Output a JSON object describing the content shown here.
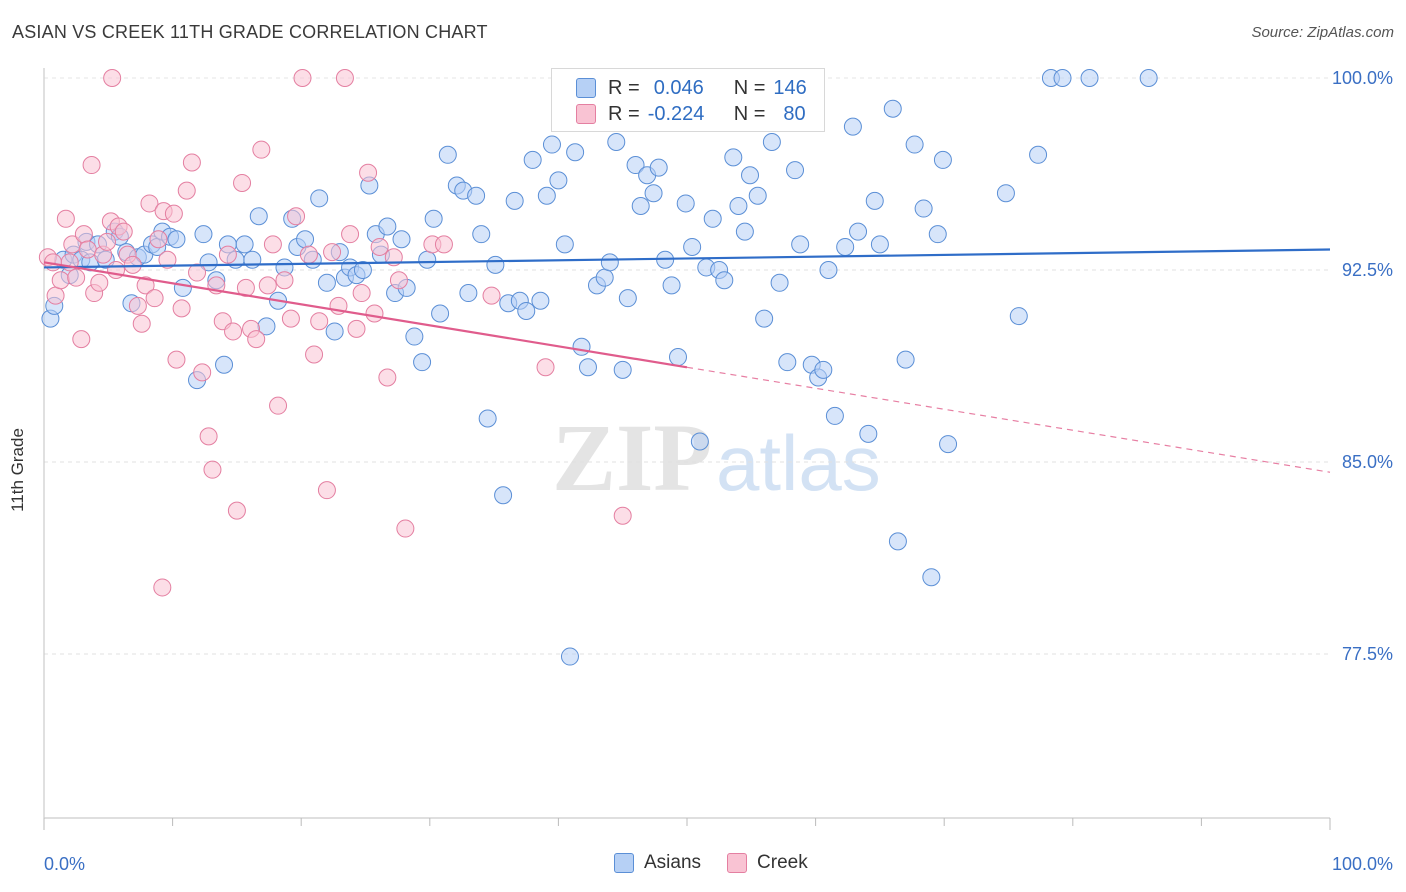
{
  "title": "ASIAN VS CREEK 11TH GRADE CORRELATION CHART",
  "source": "Source: ZipAtlas.com",
  "watermark": {
    "zip": "ZIP",
    "atlas": "atlas"
  },
  "legend": {
    "r_label": "R =",
    "n_label": "N =",
    "series": [
      {
        "name": "Asians",
        "r": "0.046",
        "n": "146",
        "color": "#5b8fd6"
      },
      {
        "name": "Creek",
        "r": "-0.224",
        "n": "80",
        "color": "#e47fa1"
      }
    ]
  },
  "chart_data": {
    "type": "scatter",
    "xlabel": "",
    "ylabel": "11th Grade",
    "xlim": [
      0,
      100
    ],
    "ylim": [
      70,
      100.5
    ],
    "x_ticks": [
      "0.0%",
      "100.0%"
    ],
    "y_ticks": [
      {
        "value": 100,
        "label": "100.0%"
      },
      {
        "value": 92.5,
        "label": "92.5%"
      },
      {
        "value": 85,
        "label": "85.0%"
      },
      {
        "value": 77.5,
        "label": "77.5%"
      }
    ],
    "grid": true,
    "series": [
      {
        "name": "Asians",
        "color": "#5b8fd6",
        "fill": "#b6d0f5",
        "trend": {
          "x": [
            0,
            100
          ],
          "y": [
            92.6,
            93.3
          ],
          "solid_until": 100
        },
        "points": [
          [
            0.5,
            90.6
          ],
          [
            0.8,
            91.1
          ],
          [
            1.5,
            92.9
          ],
          [
            2.0,
            92.3
          ],
          [
            2.3,
            93.1
          ],
          [
            2.9,
            92.9
          ],
          [
            3.3,
            93.6
          ],
          [
            3.6,
            92.8
          ],
          [
            4.2,
            93.5
          ],
          [
            4.8,
            92.9
          ],
          [
            5.5,
            94.0
          ],
          [
            5.9,
            93.8
          ],
          [
            6.4,
            93.2
          ],
          [
            6.8,
            91.2
          ],
          [
            7.3,
            93.0
          ],
          [
            7.8,
            93.1
          ],
          [
            8.4,
            93.5
          ],
          [
            8.8,
            93.4
          ],
          [
            9.2,
            94.0
          ],
          [
            9.8,
            93.8
          ],
          [
            10.3,
            93.7
          ],
          [
            10.8,
            91.8
          ],
          [
            11.9,
            88.2
          ],
          [
            12.4,
            93.9
          ],
          [
            12.8,
            92.8
          ],
          [
            13.4,
            92.1
          ],
          [
            14.0,
            88.8
          ],
          [
            14.3,
            93.5
          ],
          [
            14.9,
            92.9
          ],
          [
            15.6,
            93.5
          ],
          [
            16.2,
            92.9
          ],
          [
            16.7,
            94.6
          ],
          [
            17.3,
            90.3
          ],
          [
            18.2,
            91.3
          ],
          [
            18.7,
            92.6
          ],
          [
            19.3,
            94.5
          ],
          [
            19.7,
            93.4
          ],
          [
            20.3,
            93.7
          ],
          [
            20.9,
            92.9
          ],
          [
            21.4,
            95.3
          ],
          [
            22.0,
            92.0
          ],
          [
            22.6,
            90.1
          ],
          [
            23.0,
            93.2
          ],
          [
            23.4,
            92.2
          ],
          [
            23.8,
            92.6
          ],
          [
            24.3,
            92.3
          ],
          [
            24.8,
            92.5
          ],
          [
            25.3,
            95.8
          ],
          [
            25.8,
            93.9
          ],
          [
            26.2,
            93.1
          ],
          [
            26.7,
            94.2
          ],
          [
            27.3,
            91.6
          ],
          [
            27.8,
            93.7
          ],
          [
            28.2,
            91.8
          ],
          [
            28.8,
            89.9
          ],
          [
            29.4,
            88.9
          ],
          [
            29.8,
            92.9
          ],
          [
            30.3,
            94.5
          ],
          [
            30.8,
            90.8
          ],
          [
            31.4,
            97.0
          ],
          [
            32.1,
            95.8
          ],
          [
            32.6,
            95.6
          ],
          [
            33.0,
            91.6
          ],
          [
            33.6,
            95.4
          ],
          [
            34.0,
            93.9
          ],
          [
            34.5,
            86.7
          ],
          [
            35.1,
            92.7
          ],
          [
            35.7,
            83.7
          ],
          [
            36.1,
            91.2
          ],
          [
            36.6,
            95.2
          ],
          [
            37.0,
            91.3
          ],
          [
            37.5,
            90.9
          ],
          [
            38.0,
            96.8
          ],
          [
            38.6,
            91.3
          ],
          [
            39.1,
            95.4
          ],
          [
            39.5,
            97.4
          ],
          [
            40.0,
            96.0
          ],
          [
            40.5,
            93.5
          ],
          [
            40.9,
            77.4
          ],
          [
            41.3,
            97.1
          ],
          [
            41.8,
            89.5
          ],
          [
            42.3,
            88.7
          ],
          [
            43.0,
            91.9
          ],
          [
            43.6,
            92.2
          ],
          [
            44.0,
            92.8
          ],
          [
            44.5,
            97.5
          ],
          [
            45.0,
            88.6
          ],
          [
            45.4,
            91.4
          ],
          [
            46.0,
            96.6
          ],
          [
            46.4,
            95.0
          ],
          [
            46.9,
            96.2
          ],
          [
            47.4,
            95.5
          ],
          [
            47.8,
            96.5
          ],
          [
            48.3,
            92.9
          ],
          [
            48.8,
            91.9
          ],
          [
            49.3,
            89.1
          ],
          [
            49.9,
            95.1
          ],
          [
            50.4,
            93.4
          ],
          [
            51.0,
            85.8
          ],
          [
            51.5,
            92.6
          ],
          [
            52.0,
            94.5
          ],
          [
            52.5,
            92.5
          ],
          [
            52.9,
            92.1
          ],
          [
            53.6,
            96.9
          ],
          [
            54.0,
            95.0
          ],
          [
            54.5,
            94.0
          ],
          [
            54.9,
            96.2
          ],
          [
            55.5,
            95.4
          ],
          [
            56.0,
            90.6
          ],
          [
            56.6,
            97.5
          ],
          [
            57.2,
            92.0
          ],
          [
            57.8,
            88.9
          ],
          [
            58.4,
            96.4
          ],
          [
            58.8,
            93.5
          ],
          [
            59.7,
            88.8
          ],
          [
            60.2,
            88.3
          ],
          [
            60.6,
            88.6
          ],
          [
            61.0,
            92.5
          ],
          [
            61.5,
            86.8
          ],
          [
            62.3,
            93.4
          ],
          [
            62.9,
            98.1
          ],
          [
            63.3,
            94.0
          ],
          [
            64.1,
            86.1
          ],
          [
            64.6,
            95.2
          ],
          [
            65.0,
            93.5
          ],
          [
            66.0,
            98.8
          ],
          [
            66.4,
            81.9
          ],
          [
            67.0,
            89.0
          ],
          [
            67.7,
            97.4
          ],
          [
            68.4,
            94.9
          ],
          [
            69.0,
            80.5
          ],
          [
            69.5,
            93.9
          ],
          [
            69.9,
            96.8
          ],
          [
            70.3,
            85.7
          ],
          [
            74.8,
            95.5
          ],
          [
            75.8,
            90.7
          ],
          [
            77.3,
            97.0
          ],
          [
            78.3,
            100.0
          ],
          [
            79.2,
            100.0
          ],
          [
            81.3,
            100.0
          ],
          [
            85.9,
            100.0
          ]
        ]
      },
      {
        "name": "Creek",
        "color": "#e47fa1",
        "fill": "#f9c3d3",
        "trend": {
          "x": [
            0,
            100
          ],
          "y": [
            92.8,
            84.6
          ],
          "solid_until": 50
        },
        "points": [
          [
            0.3,
            93.0
          ],
          [
            0.7,
            92.8
          ],
          [
            0.9,
            91.5
          ],
          [
            1.3,
            92.1
          ],
          [
            1.7,
            94.5
          ],
          [
            2.0,
            92.8
          ],
          [
            2.2,
            93.5
          ],
          [
            2.5,
            92.2
          ],
          [
            2.9,
            89.8
          ],
          [
            3.1,
            93.9
          ],
          [
            3.4,
            93.3
          ],
          [
            3.7,
            96.6
          ],
          [
            3.9,
            91.6
          ],
          [
            4.3,
            92.0
          ],
          [
            4.6,
            93.1
          ],
          [
            4.9,
            93.6
          ],
          [
            5.2,
            94.4
          ],
          [
            5.6,
            92.5
          ],
          [
            5.8,
            94.2
          ],
          [
            6.2,
            94.0
          ],
          [
            6.5,
            93.1
          ],
          [
            6.9,
            92.7
          ],
          [
            7.3,
            91.1
          ],
          [
            7.6,
            90.4
          ],
          [
            7.9,
            91.9
          ],
          [
            8.2,
            95.1
          ],
          [
            8.6,
            91.4
          ],
          [
            8.9,
            93.7
          ],
          [
            9.3,
            94.8
          ],
          [
            9.6,
            92.9
          ],
          [
            10.1,
            94.7
          ],
          [
            10.3,
            89.0
          ],
          [
            10.7,
            91.0
          ],
          [
            11.1,
            95.6
          ],
          [
            11.5,
            96.7
          ],
          [
            11.9,
            92.4
          ],
          [
            12.3,
            88.5
          ],
          [
            12.8,
            86.0
          ],
          [
            13.1,
            84.7
          ],
          [
            13.4,
            91.9
          ],
          [
            13.9,
            90.5
          ],
          [
            14.3,
            93.1
          ],
          [
            14.7,
            90.1
          ],
          [
            15.0,
            83.1
          ],
          [
            15.4,
            95.9
          ],
          [
            15.7,
            91.8
          ],
          [
            16.1,
            90.2
          ],
          [
            16.5,
            89.8
          ],
          [
            16.9,
            97.2
          ],
          [
            17.4,
            91.9
          ],
          [
            17.8,
            93.5
          ],
          [
            18.2,
            87.2
          ],
          [
            18.7,
            92.1
          ],
          [
            19.2,
            90.6
          ],
          [
            19.6,
            94.6
          ],
          [
            20.1,
            100.0
          ],
          [
            20.6,
            93.1
          ],
          [
            21.0,
            89.2
          ],
          [
            21.4,
            90.5
          ],
          [
            22.0,
            83.9
          ],
          [
            22.4,
            93.2
          ],
          [
            22.9,
            91.1
          ],
          [
            23.4,
            100.0
          ],
          [
            23.8,
            93.9
          ],
          [
            24.3,
            90.2
          ],
          [
            24.7,
            91.6
          ],
          [
            25.2,
            96.3
          ],
          [
            25.7,
            90.8
          ],
          [
            26.1,
            93.4
          ],
          [
            26.7,
            88.3
          ],
          [
            27.2,
            93.0
          ],
          [
            27.6,
            92.1
          ],
          [
            28.1,
            82.4
          ],
          [
            30.2,
            93.5
          ],
          [
            31.1,
            93.5
          ],
          [
            34.8,
            91.5
          ],
          [
            39.0,
            88.7
          ],
          [
            45.0,
            82.9
          ],
          [
            9.2,
            80.1
          ],
          [
            5.3,
            100.0
          ]
        ]
      }
    ]
  }
}
